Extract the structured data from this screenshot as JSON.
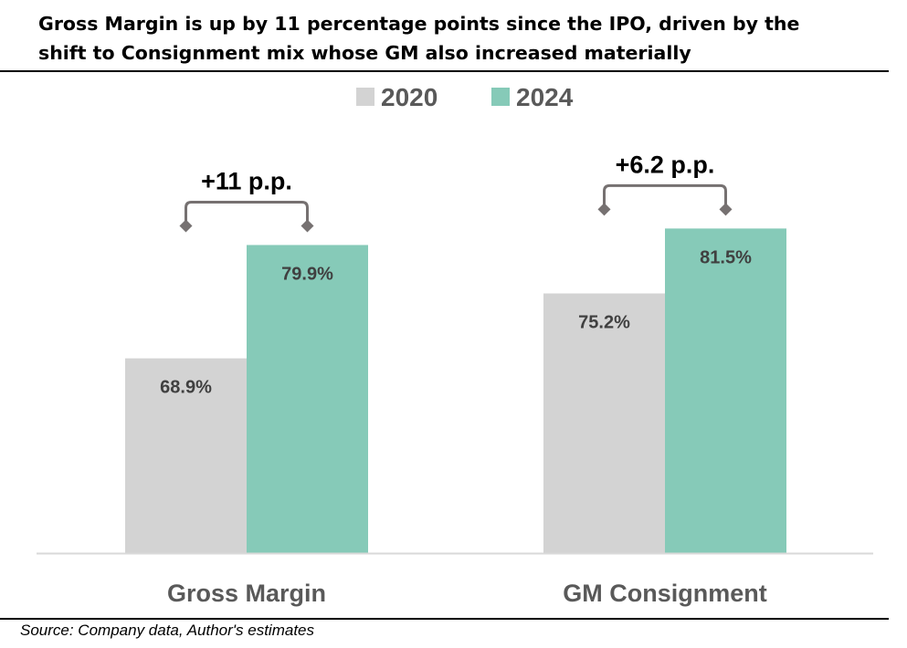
{
  "title": {
    "line1": "Gross Margin is up by 11 percentage points since the IPO, driven by the",
    "line2": "shift to Consignment mix whose GM also increased materially"
  },
  "source": "Source: Company data, Author's estimates",
  "colors": {
    "series_2020": "#d3d3d3",
    "series_2024": "#86cab8",
    "bracket": "#767171",
    "axis": "#d9d9d9",
    "label_text": "#404040",
    "category_text": "#595959"
  },
  "chart_data": {
    "type": "bar",
    "categories": [
      "Gross Margin",
      "GM Consignment"
    ],
    "series": [
      {
        "name": "2020",
        "values": [
          68.9,
          75.2
        ],
        "labels": [
          "68.9%",
          "75.2%"
        ]
      },
      {
        "name": "2024",
        "values": [
          79.9,
          81.5
        ],
        "labels": [
          "79.9%",
          "81.5%"
        ]
      }
    ],
    "annotations": [
      "+11 p.p.",
      "+6.2 p.p."
    ],
    "ylim": [
      50,
      88
    ],
    "legend": "top-center",
    "grid": false
  }
}
